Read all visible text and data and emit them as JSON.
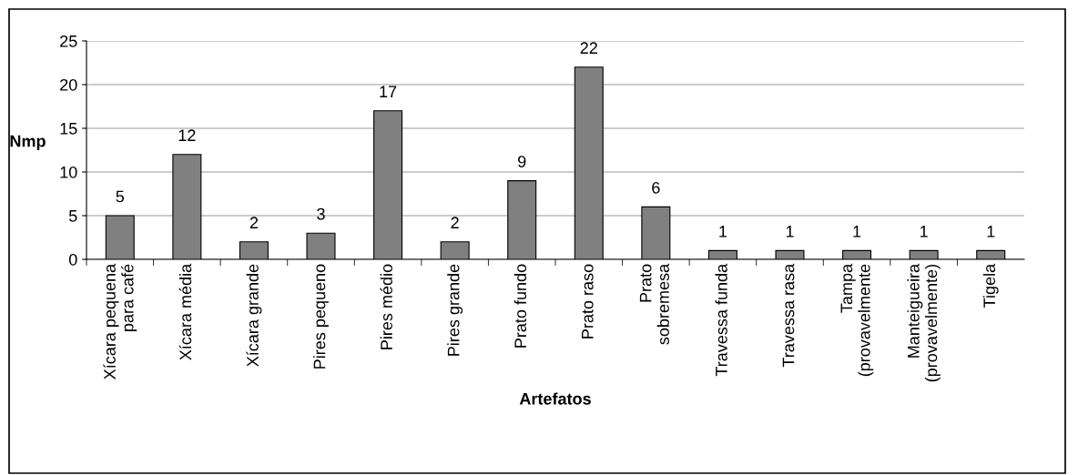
{
  "chart_data": {
    "type": "bar",
    "xlabel": "Artefatos",
    "ylabel": "Nmp",
    "categories": [
      "Xícara pequena\npara café",
      "Xícara média",
      "Xícara grande",
      "Pires pequeno",
      "Pires médio",
      "Pires grande",
      "Prato fundo",
      "Prato raso",
      "Prato\nsobremesa",
      "Travessa funda",
      "Travessa rasa",
      "Tampa\n(provavelmente",
      "Manteigueira\n(provavelmente)",
      "Tigela"
    ],
    "values": [
      5,
      12,
      2,
      3,
      17,
      2,
      9,
      22,
      6,
      1,
      1,
      1,
      1,
      1
    ],
    "color": "#808080",
    "ylim": [
      0,
      25
    ],
    "yticks": [
      0,
      5,
      10,
      15,
      20,
      25
    ],
    "grid": "y",
    "data_labels": true
  }
}
